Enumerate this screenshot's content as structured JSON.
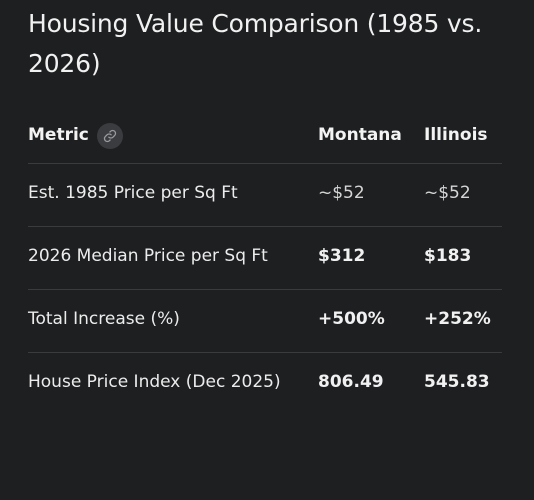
{
  "title": "Housing Value Comparison (1985 vs. 2026)",
  "table": {
    "headers": [
      "Metric",
      "Montana",
      "Illinois"
    ],
    "rows": [
      {
        "metric": "Est. 1985 Price per Sq Ft",
        "montana": "~$52",
        "illinois": "~$52"
      },
      {
        "metric": "2026 Median Price per Sq Ft",
        "montana": "$312",
        "illinois": "$183"
      },
      {
        "metric": "Total Increase (%)",
        "montana": "+500%",
        "illinois": "+252%"
      },
      {
        "metric": "House Price Index (Dec 2025)",
        "montana": "806.49",
        "illinois": "545.83"
      }
    ]
  },
  "icons": {
    "header_link": "link-icon"
  },
  "colors": {
    "background": "#1e1f21",
    "divider": "#3a3b3e",
    "icon_bg": "#3b3c3f"
  }
}
